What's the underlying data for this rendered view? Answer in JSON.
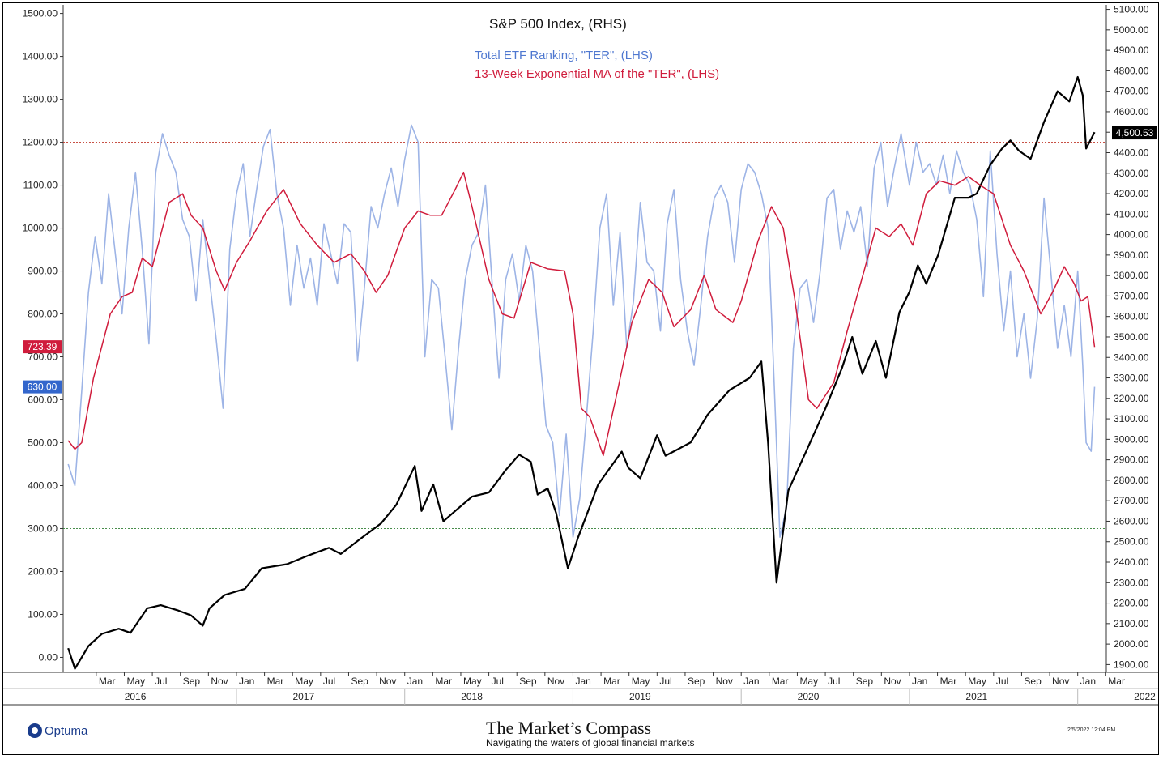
{
  "chart_data": {
    "type": "line",
    "legend": {
      "title": "S&P 500 Index, (RHS)",
      "ter_label": "Total ETF Ranking, \"TER\", (LHS)",
      "ema_label": "13-Week Exponential MA of the \"TER\", (LHS)"
    },
    "left_axis": {
      "ticks": [
        "0.00",
        "100.00",
        "200.00",
        "300.00",
        "400.00",
        "500.00",
        "600.00",
        "700.00",
        "800.00",
        "900.00",
        "1000.00",
        "1100.00",
        "1200.00",
        "1300.00",
        "1400.00",
        "1500.00"
      ],
      "range": [
        -35,
        1520
      ]
    },
    "right_axis": {
      "ticks": [
        "1900.00",
        "2000.00",
        "2100.00",
        "2200.00",
        "2300.00",
        "2400.00",
        "2500.00",
        "2600.00",
        "2700.00",
        "2800.00",
        "2900.00",
        "3000.00",
        "3100.00",
        "3200.00",
        "3300.00",
        "3400.00",
        "3500.00",
        "3600.00",
        "3700.00",
        "3800.00",
        "3900.00",
        "4000.00",
        "4100.00",
        "4200.00",
        "4300.00",
        "4400.00",
        "4500.00",
        "4600.00",
        "4700.00",
        "4800.00",
        "4900.00",
        "5000.00",
        "5100.00"
      ],
      "range": [
        1862,
        5122
      ]
    },
    "x_axis": {
      "start": 2015.97,
      "end": 2022.17,
      "month_labels": [
        "Mar",
        "May",
        "Jul",
        "Sep",
        "Nov",
        "Jan",
        "Mar",
        "May",
        "Jul",
        "Sep",
        "Nov",
        "Jan",
        "Mar",
        "May",
        "Jul",
        "Sep",
        "Nov",
        "Jan",
        "Mar",
        "May",
        "Jul",
        "Sep",
        "Nov",
        "Jan",
        "Mar",
        "May",
        "Jul",
        "Sep",
        "Nov",
        "Jan",
        "Mar",
        "May",
        "Jul",
        "Sep",
        "Nov",
        "Jan",
        "Mar"
      ],
      "year_labels": [
        "2016",
        "2017",
        "2018",
        "2019",
        "2020",
        "2021",
        "2022"
      ]
    },
    "reference_lines": [
      {
        "axis": "left",
        "value": 1200,
        "color": "#c0392b"
      },
      {
        "axis": "left",
        "value": 300,
        "color": "#2e7d32"
      }
    ],
    "value_labels": {
      "ema_last": "723.39",
      "ter_last": "630.00",
      "spx_last": "4,500.53"
    },
    "colors": {
      "ter": "#9db4e6",
      "ema": "#d01c3c",
      "spx": "#000000",
      "ema_tag": "#d01c3c",
      "ter_tag": "#3366cc",
      "spx_tag": "#000000"
    },
    "spx_anchors": [
      [
        2016.0,
        1980
      ],
      [
        2016.04,
        1880
      ],
      [
        2016.12,
        1990
      ],
      [
        2016.2,
        2050
      ],
      [
        2016.3,
        2075
      ],
      [
        2016.37,
        2055
      ],
      [
        2016.47,
        2175
      ],
      [
        2016.55,
        2190
      ],
      [
        2016.65,
        2165
      ],
      [
        2016.73,
        2140
      ],
      [
        2016.8,
        2090
      ],
      [
        2016.84,
        2175
      ],
      [
        2016.93,
        2240
      ],
      [
        2017.05,
        2270
      ],
      [
        2017.15,
        2370
      ],
      [
        2017.3,
        2390
      ],
      [
        2017.42,
        2430
      ],
      [
        2017.55,
        2470
      ],
      [
        2017.62,
        2440
      ],
      [
        2017.73,
        2510
      ],
      [
        2017.86,
        2590
      ],
      [
        2017.95,
        2680
      ],
      [
        2018.06,
        2870
      ],
      [
        2018.1,
        2650
      ],
      [
        2018.17,
        2780
      ],
      [
        2018.23,
        2600
      ],
      [
        2018.3,
        2650
      ],
      [
        2018.4,
        2720
      ],
      [
        2018.5,
        2740
      ],
      [
        2018.6,
        2850
      ],
      [
        2018.68,
        2925
      ],
      [
        2018.75,
        2890
      ],
      [
        2018.79,
        2730
      ],
      [
        2018.85,
        2760
      ],
      [
        2018.9,
        2640
      ],
      [
        2018.97,
        2370
      ],
      [
        2019.03,
        2520
      ],
      [
        2019.15,
        2780
      ],
      [
        2019.29,
        2940
      ],
      [
        2019.33,
        2860
      ],
      [
        2019.4,
        2810
      ],
      [
        2019.5,
        3020
      ],
      [
        2019.55,
        2920
      ],
      [
        2019.62,
        2950
      ],
      [
        2019.7,
        2985
      ],
      [
        2019.8,
        3120
      ],
      [
        2019.93,
        3240
      ],
      [
        2020.05,
        3300
      ],
      [
        2020.12,
        3380
      ],
      [
        2020.16,
        2980
      ],
      [
        2020.21,
        2300
      ],
      [
        2020.28,
        2750
      ],
      [
        2020.38,
        2930
      ],
      [
        2020.5,
        3150
      ],
      [
        2020.6,
        3350
      ],
      [
        2020.66,
        3500
      ],
      [
        2020.72,
        3320
      ],
      [
        2020.8,
        3480
      ],
      [
        2020.86,
        3300
      ],
      [
        2020.94,
        3620
      ],
      [
        2021.0,
        3720
      ],
      [
        2021.05,
        3850
      ],
      [
        2021.1,
        3760
      ],
      [
        2021.17,
        3900
      ],
      [
        2021.27,
        4180
      ],
      [
        2021.35,
        4180
      ],
      [
        2021.4,
        4200
      ],
      [
        2021.48,
        4340
      ],
      [
        2021.55,
        4420
      ],
      [
        2021.6,
        4460
      ],
      [
        2021.65,
        4410
      ],
      [
        2021.72,
        4370
      ],
      [
        2021.8,
        4550
      ],
      [
        2021.88,
        4700
      ],
      [
        2021.95,
        4650
      ],
      [
        2022.0,
        4770
      ],
      [
        2022.03,
        4680
      ],
      [
        2022.05,
        4420
      ],
      [
        2022.1,
        4500
      ]
    ],
    "ema_anchors": [
      [
        2016.0,
        505
      ],
      [
        2016.04,
        485
      ],
      [
        2016.08,
        500
      ],
      [
        2016.15,
        650
      ],
      [
        2016.25,
        800
      ],
      [
        2016.32,
        840
      ],
      [
        2016.38,
        850
      ],
      [
        2016.44,
        930
      ],
      [
        2016.5,
        910
      ],
      [
        2016.6,
        1060
      ],
      [
        2016.68,
        1080
      ],
      [
        2016.73,
        1030
      ],
      [
        2016.8,
        1000
      ],
      [
        2016.88,
        900
      ],
      [
        2016.93,
        855
      ],
      [
        2017.0,
        920
      ],
      [
        2017.08,
        970
      ],
      [
        2017.18,
        1040
      ],
      [
        2017.28,
        1090
      ],
      [
        2017.38,
        1010
      ],
      [
        2017.48,
        960
      ],
      [
        2017.58,
        920
      ],
      [
        2017.68,
        940
      ],
      [
        2017.76,
        900
      ],
      [
        2017.83,
        850
      ],
      [
        2017.9,
        890
      ],
      [
        2018.0,
        1000
      ],
      [
        2018.08,
        1040
      ],
      [
        2018.15,
        1030
      ],
      [
        2018.22,
        1030
      ],
      [
        2018.3,
        1090
      ],
      [
        2018.35,
        1130
      ],
      [
        2018.4,
        1050
      ],
      [
        2018.5,
        880
      ],
      [
        2018.58,
        800
      ],
      [
        2018.65,
        790
      ],
      [
        2018.75,
        920
      ],
      [
        2018.85,
        905
      ],
      [
        2018.95,
        900
      ],
      [
        2019.0,
        800
      ],
      [
        2019.05,
        580
      ],
      [
        2019.1,
        560
      ],
      [
        2019.18,
        470
      ],
      [
        2019.27,
        630
      ],
      [
        2019.35,
        780
      ],
      [
        2019.45,
        880
      ],
      [
        2019.53,
        850
      ],
      [
        2019.6,
        770
      ],
      [
        2019.7,
        810
      ],
      [
        2019.78,
        890
      ],
      [
        2019.85,
        810
      ],
      [
        2019.95,
        780
      ],
      [
        2020.0,
        830
      ],
      [
        2020.1,
        970
      ],
      [
        2020.18,
        1050
      ],
      [
        2020.25,
        1000
      ],
      [
        2020.32,
        830
      ],
      [
        2020.4,
        600
      ],
      [
        2020.45,
        580
      ],
      [
        2020.55,
        640
      ],
      [
        2020.63,
        760
      ],
      [
        2020.73,
        900
      ],
      [
        2020.8,
        1000
      ],
      [
        2020.88,
        980
      ],
      [
        2020.95,
        1010
      ],
      [
        2021.02,
        960
      ],
      [
        2021.1,
        1080
      ],
      [
        2021.18,
        1110
      ],
      [
        2021.27,
        1100
      ],
      [
        2021.35,
        1120
      ],
      [
        2021.42,
        1100
      ],
      [
        2021.5,
        1080
      ],
      [
        2021.6,
        960
      ],
      [
        2021.68,
        900
      ],
      [
        2021.78,
        800
      ],
      [
        2021.85,
        850
      ],
      [
        2021.92,
        910
      ],
      [
        2021.98,
        870
      ],
      [
        2022.02,
        830
      ],
      [
        2022.06,
        840
      ],
      [
        2022.1,
        723
      ]
    ],
    "ter_anchors": [
      [
        2016.0,
        450
      ],
      [
        2016.04,
        400
      ],
      [
        2016.08,
        620
      ],
      [
        2016.12,
        850
      ],
      [
        2016.16,
        980
      ],
      [
        2016.2,
        870
      ],
      [
        2016.24,
        1080
      ],
      [
        2016.28,
        940
      ],
      [
        2016.32,
        800
      ],
      [
        2016.36,
        1000
      ],
      [
        2016.4,
        1130
      ],
      [
        2016.44,
        950
      ],
      [
        2016.48,
        730
      ],
      [
        2016.52,
        1130
      ],
      [
        2016.56,
        1220
      ],
      [
        2016.6,
        1170
      ],
      [
        2016.64,
        1130
      ],
      [
        2016.68,
        1020
      ],
      [
        2016.72,
        980
      ],
      [
        2016.76,
        830
      ],
      [
        2016.8,
        1020
      ],
      [
        2016.84,
        880
      ],
      [
        2016.88,
        740
      ],
      [
        2016.92,
        580
      ],
      [
        2016.96,
        950
      ],
      [
        2017.0,
        1080
      ],
      [
        2017.04,
        1150
      ],
      [
        2017.08,
        980
      ],
      [
        2017.12,
        1090
      ],
      [
        2017.16,
        1190
      ],
      [
        2017.2,
        1230
      ],
      [
        2017.24,
        1080
      ],
      [
        2017.28,
        1000
      ],
      [
        2017.32,
        820
      ],
      [
        2017.36,
        960
      ],
      [
        2017.4,
        860
      ],
      [
        2017.44,
        930
      ],
      [
        2017.48,
        820
      ],
      [
        2017.52,
        1010
      ],
      [
        2017.56,
        940
      ],
      [
        2017.6,
        870
      ],
      [
        2017.64,
        1010
      ],
      [
        2017.68,
        990
      ],
      [
        2017.72,
        690
      ],
      [
        2017.76,
        860
      ],
      [
        2017.8,
        1050
      ],
      [
        2017.84,
        1000
      ],
      [
        2017.88,
        1080
      ],
      [
        2017.92,
        1140
      ],
      [
        2017.96,
        1050
      ],
      [
        2018.0,
        1160
      ],
      [
        2018.04,
        1240
      ],
      [
        2018.08,
        1200
      ],
      [
        2018.12,
        700
      ],
      [
        2018.16,
        880
      ],
      [
        2018.2,
        860
      ],
      [
        2018.24,
        700
      ],
      [
        2018.28,
        530
      ],
      [
        2018.32,
        720
      ],
      [
        2018.36,
        880
      ],
      [
        2018.4,
        960
      ],
      [
        2018.44,
        990
      ],
      [
        2018.48,
        1100
      ],
      [
        2018.52,
        870
      ],
      [
        2018.56,
        650
      ],
      [
        2018.6,
        880
      ],
      [
        2018.64,
        940
      ],
      [
        2018.68,
        830
      ],
      [
        2018.72,
        960
      ],
      [
        2018.76,
        900
      ],
      [
        2018.8,
        720
      ],
      [
        2018.84,
        540
      ],
      [
        2018.88,
        500
      ],
      [
        2018.92,
        330
      ],
      [
        2018.96,
        520
      ],
      [
        2019.0,
        280
      ],
      [
        2019.04,
        370
      ],
      [
        2019.08,
        560
      ],
      [
        2019.12,
        760
      ],
      [
        2019.16,
        1000
      ],
      [
        2019.2,
        1080
      ],
      [
        2019.24,
        820
      ],
      [
        2019.28,
        990
      ],
      [
        2019.32,
        720
      ],
      [
        2019.36,
        830
      ],
      [
        2019.4,
        1060
      ],
      [
        2019.44,
        920
      ],
      [
        2019.48,
        900
      ],
      [
        2019.52,
        760
      ],
      [
        2019.56,
        1010
      ],
      [
        2019.6,
        1090
      ],
      [
        2019.64,
        880
      ],
      [
        2019.68,
        760
      ],
      [
        2019.72,
        680
      ],
      [
        2019.76,
        820
      ],
      [
        2019.8,
        980
      ],
      [
        2019.84,
        1070
      ],
      [
        2019.88,
        1100
      ],
      [
        2019.92,
        1060
      ],
      [
        2019.96,
        920
      ],
      [
        2020.0,
        1090
      ],
      [
        2020.04,
        1150
      ],
      [
        2020.08,
        1130
      ],
      [
        2020.12,
        1080
      ],
      [
        2020.16,
        1000
      ],
      [
        2020.2,
        600
      ],
      [
        2020.23,
        280
      ],
      [
        2020.27,
        350
      ],
      [
        2020.31,
        720
      ],
      [
        2020.35,
        860
      ],
      [
        2020.39,
        880
      ],
      [
        2020.43,
        780
      ],
      [
        2020.47,
        900
      ],
      [
        2020.51,
        1070
      ],
      [
        2020.55,
        1090
      ],
      [
        2020.59,
        950
      ],
      [
        2020.63,
        1040
      ],
      [
        2020.67,
        990
      ],
      [
        2020.71,
        1050
      ],
      [
        2020.75,
        910
      ],
      [
        2020.79,
        1140
      ],
      [
        2020.83,
        1200
      ],
      [
        2020.87,
        1050
      ],
      [
        2020.91,
        1140
      ],
      [
        2020.95,
        1220
      ],
      [
        2021.0,
        1100
      ],
      [
        2021.04,
        1200
      ],
      [
        2021.08,
        1130
      ],
      [
        2021.12,
        1150
      ],
      [
        2021.16,
        1100
      ],
      [
        2021.2,
        1170
      ],
      [
        2021.24,
        1080
      ],
      [
        2021.28,
        1180
      ],
      [
        2021.32,
        1130
      ],
      [
        2021.36,
        1100
      ],
      [
        2021.4,
        1020
      ],
      [
        2021.44,
        840
      ],
      [
        2021.48,
        1180
      ],
      [
        2021.52,
        940
      ],
      [
        2021.56,
        760
      ],
      [
        2021.6,
        900
      ],
      [
        2021.64,
        700
      ],
      [
        2021.68,
        800
      ],
      [
        2021.72,
        650
      ],
      [
        2021.76,
        790
      ],
      [
        2021.8,
        1070
      ],
      [
        2021.84,
        900
      ],
      [
        2021.88,
        720
      ],
      [
        2021.92,
        820
      ],
      [
        2021.96,
        700
      ],
      [
        2022.0,
        900
      ],
      [
        2022.03,
        680
      ],
      [
        2022.05,
        500
      ],
      [
        2022.08,
        480
      ],
      [
        2022.1,
        630
      ]
    ]
  },
  "footer": {
    "optuma": "Optuma",
    "brand_name": "The Market’s Compass",
    "tagline": "Navigating the waters of global financial markets",
    "timestamp": "2/5/2022 12:04 PM"
  }
}
